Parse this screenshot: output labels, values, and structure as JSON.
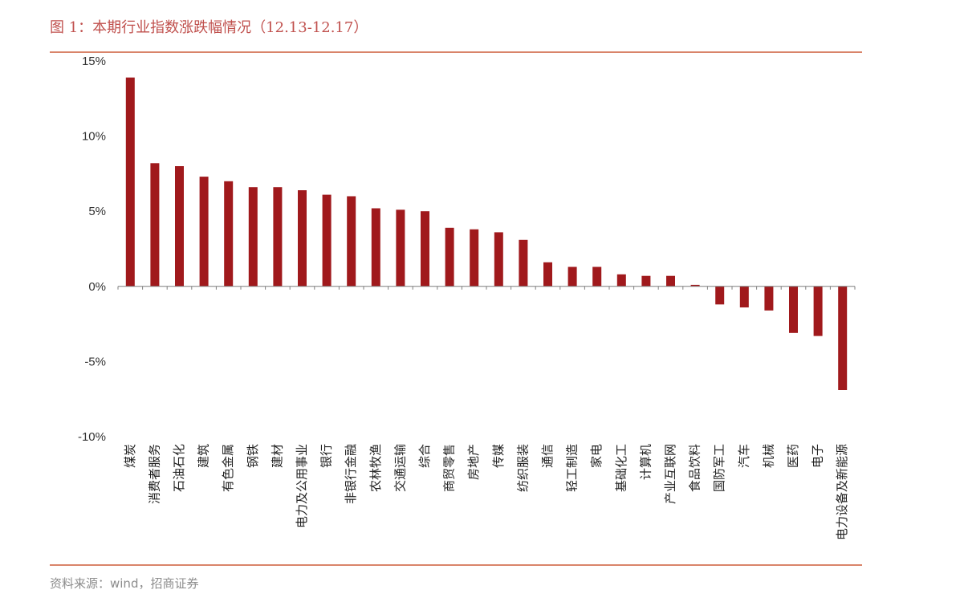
{
  "figure": {
    "title": "图 1：本期行业指数涨跌幅情况（12.13-12.17）",
    "source": "资料来源：wind，招商证券"
  },
  "colors": {
    "bar": "#a0191c",
    "rule": "#d9846a",
    "title": "#c0504d",
    "axis": "#7f7f7f"
  },
  "chart_data": {
    "type": "bar",
    "title": "图 1：本期行业指数涨跌幅情况（12.13-12.17）",
    "xlabel": "",
    "ylabel": "",
    "ylim": [
      -10,
      15
    ],
    "yticks": [
      15,
      10,
      5,
      0,
      -5,
      -10
    ],
    "ytick_labels": [
      "15%",
      "10%",
      "5%",
      "0%",
      "-5%",
      "-10%"
    ],
    "grid": false,
    "legend": "none",
    "categories": [
      "煤炭",
      "消费者服务",
      "石油石化",
      "建筑",
      "有色金属",
      "钢铁",
      "建材",
      "电力及公用事业",
      "银行",
      "非银行金融",
      "农林牧渔",
      "交通运输",
      "综合",
      "商贸零售",
      "房地产",
      "传媒",
      "纺织服装",
      "通信",
      "轻工制造",
      "家电",
      "基础化工",
      "计算机",
      "产业互联网",
      "食品饮料",
      "国防军工",
      "汽车",
      "机械",
      "医药",
      "电子",
      "电力设备及新能源"
    ],
    "values": [
      13.9,
      8.2,
      8.0,
      7.3,
      7.0,
      6.6,
      6.6,
      6.4,
      6.1,
      6.0,
      5.2,
      5.1,
      5.0,
      3.9,
      3.8,
      3.6,
      3.1,
      1.6,
      1.3,
      1.3,
      0.8,
      0.7,
      0.7,
      0.1,
      -1.2,
      -1.4,
      -1.6,
      -3.1,
      -3.3,
      -6.9
    ]
  }
}
